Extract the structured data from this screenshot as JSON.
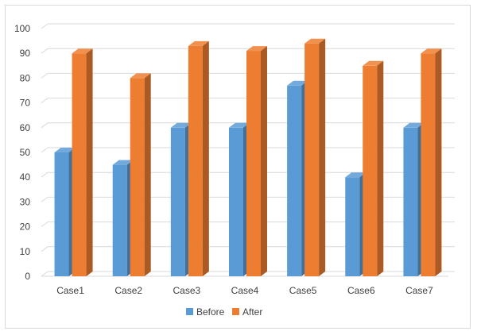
{
  "chart_data": {
    "type": "bar",
    "style": "3d-clustered-column",
    "categories": [
      "Case1",
      "Case2",
      "Case3",
      "Case4",
      "Case5",
      "Case6",
      "Case7"
    ],
    "series": [
      {
        "name": "Before",
        "color": "#5b9bd5",
        "values": [
          50,
          45,
          60,
          60,
          77,
          40,
          60
        ]
      },
      {
        "name": "After",
        "color": "#ed7d31",
        "values": [
          90,
          80,
          93,
          91,
          94,
          85,
          90
        ]
      }
    ],
    "ylim": [
      0,
      100
    ],
    "yticks": [
      0,
      10,
      20,
      30,
      40,
      50,
      60,
      70,
      80,
      90,
      100
    ],
    "grid": true,
    "legend": "bottom",
    "title": "",
    "xlabel": "",
    "ylabel": ""
  }
}
